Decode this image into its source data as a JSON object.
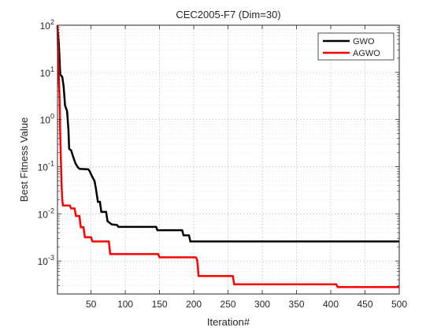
{
  "chart_data": {
    "type": "line",
    "title": "CEC2005-F7 (Dim=30)",
    "xlabel": "Iteration#",
    "ylabel": "Best Fitness Value",
    "xlim": [
      1,
      500
    ],
    "ylim": [
      0.0002,
      100
    ],
    "yscale": "log",
    "grid": true,
    "legend": "top-right",
    "x_ticks": [
      50,
      100,
      150,
      200,
      250,
      300,
      350,
      400,
      450,
      500
    ],
    "y_ticks": [
      {
        "value": 0.001,
        "base": "10",
        "exp": "-3"
      },
      {
        "value": 0.01,
        "base": "10",
        "exp": "-2"
      },
      {
        "value": 0.1,
        "base": "10",
        "exp": "-1"
      },
      {
        "value": 1,
        "base": "10",
        "exp": "0"
      },
      {
        "value": 10,
        "base": "10",
        "exp": "1"
      },
      {
        "value": 100,
        "base": "10",
        "exp": "2"
      }
    ],
    "series": [
      {
        "name": "GWO",
        "color": "#000000",
        "points": [
          [
            1,
            90
          ],
          [
            3,
            40
          ],
          [
            5,
            9
          ],
          [
            8,
            8
          ],
          [
            10,
            5
          ],
          [
            12,
            2
          ],
          [
            15,
            1.5
          ],
          [
            17,
            0.6
          ],
          [
            18,
            0.24
          ],
          [
            21,
            0.22
          ],
          [
            24,
            0.16
          ],
          [
            27,
            0.12
          ],
          [
            30,
            0.1
          ],
          [
            33,
            0.09
          ],
          [
            46,
            0.088
          ],
          [
            48,
            0.08
          ],
          [
            52,
            0.06
          ],
          [
            55,
            0.05
          ],
          [
            57,
            0.035
          ],
          [
            60,
            0.018
          ],
          [
            63,
            0.018
          ],
          [
            65,
            0.011
          ],
          [
            72,
            0.011
          ],
          [
            74,
            0.007
          ],
          [
            80,
            0.006
          ],
          [
            88,
            0.0058
          ],
          [
            90,
            0.0053
          ],
          [
            145,
            0.0053
          ],
          [
            147,
            0.0045
          ],
          [
            183,
            0.0045
          ],
          [
            185,
            0.0035
          ],
          [
            193,
            0.0035
          ],
          [
            195,
            0.0026
          ],
          [
            500,
            0.0026
          ]
        ]
      },
      {
        "name": "AGWO",
        "color": "#ff0000",
        "points": [
          [
            1,
            100
          ],
          [
            2,
            20
          ],
          [
            4,
            3
          ],
          [
            5,
            0.5
          ],
          [
            6,
            0.13
          ],
          [
            7,
            0.04
          ],
          [
            8,
            0.02
          ],
          [
            9,
            0.015
          ],
          [
            19,
            0.015
          ],
          [
            21,
            0.013
          ],
          [
            26,
            0.013
          ],
          [
            28,
            0.009
          ],
          [
            33,
            0.009
          ],
          [
            35,
            0.0052
          ],
          [
            39,
            0.0052
          ],
          [
            41,
            0.0032
          ],
          [
            50,
            0.0032
          ],
          [
            52,
            0.0026
          ],
          [
            76,
            0.0026
          ],
          [
            78,
            0.0014
          ],
          [
            148,
            0.0014
          ],
          [
            150,
            0.0012
          ],
          [
            203,
            0.0012
          ],
          [
            205,
            0.00105
          ],
          [
            207,
            0.00048
          ],
          [
            257,
            0.00048
          ],
          [
            259,
            0.00032
          ],
          [
            408,
            0.00032
          ],
          [
            410,
            0.00028
          ],
          [
            500,
            0.00028
          ]
        ]
      }
    ]
  }
}
